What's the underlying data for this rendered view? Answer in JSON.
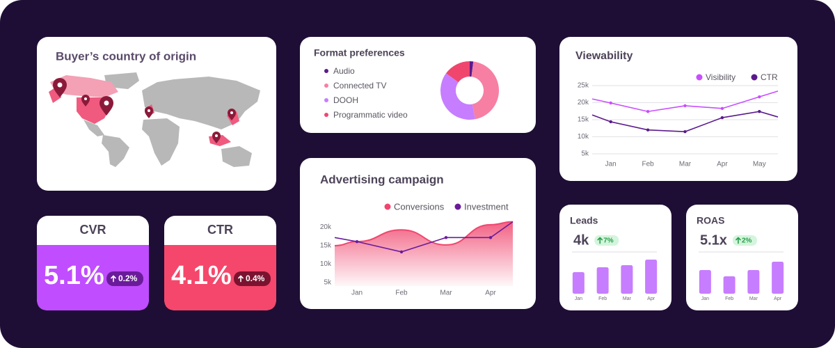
{
  "map": {
    "title": "Buyer’s country of origin"
  },
  "kpis": [
    {
      "label": "CVR",
      "value": "5.1%",
      "change": "0.2%"
    },
    {
      "label": "CTR",
      "value": "4.1%",
      "change": "0.4%"
    }
  ],
  "chart_data": [
    {
      "type": "pie",
      "donut": true,
      "title": "Format preferences",
      "categories": [
        "Audio",
        "Connected TV",
        "DOOH",
        "Programmatic video"
      ],
      "values": [
        2,
        45,
        38,
        15
      ],
      "colors": [
        "#5b1a8c",
        "#f77fa3",
        "#c77dff",
        "#f0466e"
      ]
    },
    {
      "type": "line",
      "title": "Viewability",
      "legend": "top-right",
      "grid": true,
      "categories": [
        null,
        "Jan",
        "Feb",
        "Mar",
        "Apr",
        "May",
        null
      ],
      "ylim": [
        5000,
        25000
      ],
      "yticks": [
        {
          "value": 5000,
          "label": "5k"
        },
        {
          "value": 10000,
          "label": "10k"
        },
        {
          "value": 15000,
          "label": "15k"
        },
        {
          "value": 20000,
          "label": "20k"
        },
        {
          "value": 25000,
          "label": "25k"
        }
      ],
      "series": [
        {
          "name": "Visibility",
          "color": "#c94dff",
          "values": [
            21100,
            19900,
            17400,
            19100,
            18300,
            21700,
            23400
          ]
        },
        {
          "name": "CTR",
          "color": "#5b1a8c",
          "values": [
            16400,
            14400,
            12000,
            11500,
            15600,
            17400,
            15800
          ]
        }
      ]
    },
    {
      "type": "line",
      "title": "Advertising campaign",
      "legend": "top-right",
      "grid": false,
      "categories": [
        null,
        "Jan",
        "Feb",
        "Mar",
        "Apr",
        null
      ],
      "ylim": [
        4000,
        22000
      ],
      "yticks": [
        {
          "value": 5000,
          "label": "5k"
        },
        {
          "value": 10000,
          "label": "10k"
        },
        {
          "value": 15000,
          "label": "15k"
        },
        {
          "value": 20000,
          "label": "20k"
        }
      ],
      "series": [
        {
          "name": "Conversions",
          "color": "#f0466e",
          "area": true,
          "smooth": true,
          "values": [
            15000,
            16100,
            19300,
            15200,
            20700,
            21500
          ]
        },
        {
          "name": "Investment",
          "color": "#6a1b9a",
          "values": [
            17200,
            16100,
            13300,
            17200,
            17200,
            21500
          ]
        }
      ]
    },
    {
      "type": "bar",
      "title": "Leads",
      "kpi": "4k",
      "change": "7%",
      "categories": [
        "Jan",
        "Feb",
        "Mar",
        "Apr"
      ],
      "values": [
        31,
        38,
        41,
        49
      ],
      "color": "#c77dff",
      "ylim": [
        0,
        50
      ]
    },
    {
      "type": "bar",
      "title": "ROAS",
      "kpi": "5.1x",
      "change": "2%",
      "categories": [
        "Jan",
        "Feb",
        "Mar",
        "Apr"
      ],
      "values": [
        34,
        25,
        34,
        46
      ],
      "color": "#c77dff",
      "ylim": [
        0,
        50
      ]
    }
  ]
}
